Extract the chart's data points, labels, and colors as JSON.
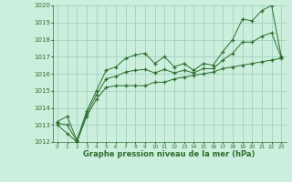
{
  "hours": [
    0,
    1,
    2,
    3,
    4,
    5,
    6,
    7,
    8,
    9,
    10,
    11,
    12,
    13,
    14,
    15,
    16,
    17,
    18,
    19,
    20,
    21,
    22,
    23
  ],
  "pressure_max": [
    1013.2,
    1013.5,
    1012.1,
    1013.8,
    1015.0,
    1016.2,
    1016.4,
    1016.9,
    1017.1,
    1017.2,
    1016.6,
    1017.0,
    1016.4,
    1016.6,
    1016.2,
    1016.6,
    1016.5,
    1017.3,
    1018.0,
    1019.2,
    1019.1,
    1019.7,
    1020.0,
    1017.0
  ],
  "pressure_min": [
    1013.0,
    1012.5,
    1012.0,
    1013.5,
    1014.5,
    1015.2,
    1015.3,
    1015.3,
    1015.3,
    1015.3,
    1015.5,
    1015.5,
    1015.7,
    1015.8,
    1015.9,
    1016.0,
    1016.1,
    1016.3,
    1016.4,
    1016.5,
    1016.6,
    1016.7,
    1016.8,
    1016.9
  ],
  "pressure_mean": [
    1013.1,
    1013.0,
    1012.05,
    1013.65,
    1014.75,
    1015.7,
    1015.85,
    1016.1,
    1016.2,
    1016.25,
    1016.05,
    1016.25,
    1016.05,
    1016.2,
    1016.05,
    1016.3,
    1016.3,
    1016.8,
    1017.2,
    1017.85,
    1017.85,
    1018.2,
    1018.4,
    1016.95
  ],
  "ylim_min": 1012,
  "ylim_max": 1020,
  "yticks": [
    1012,
    1013,
    1014,
    1015,
    1016,
    1017,
    1018,
    1019,
    1020
  ],
  "line_color": "#2d6e2d",
  "bg_color": "#cceedd",
  "grid_color": "#99ccbb",
  "xlabel": "Graphe pression niveau de la mer (hPa)",
  "marker": "+",
  "marker_size": 3.5,
  "linewidth": 0.7
}
